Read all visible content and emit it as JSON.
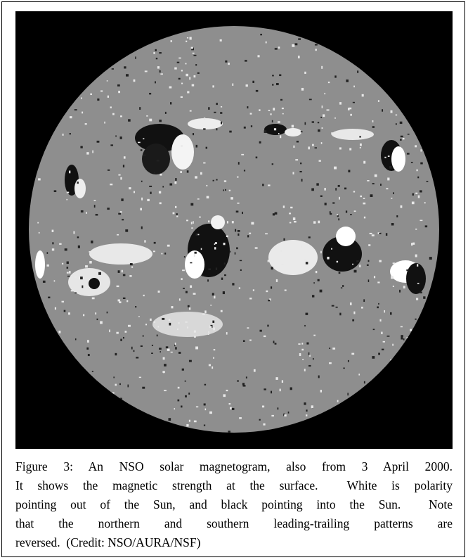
{
  "figure": {
    "caption_lines": [
      "Figure 3: An NSO solar magnetogram, also from 3 April 2000.",
      "It shows the magnetic strength at the surface.  White is polarity",
      "pointing out of the Sun, and black pointing into the Sun.  Note",
      "that the northern and southern leading-trailing patterns are",
      "reversed.  (Credit: NSO/AURA/NSF)"
    ]
  }
}
